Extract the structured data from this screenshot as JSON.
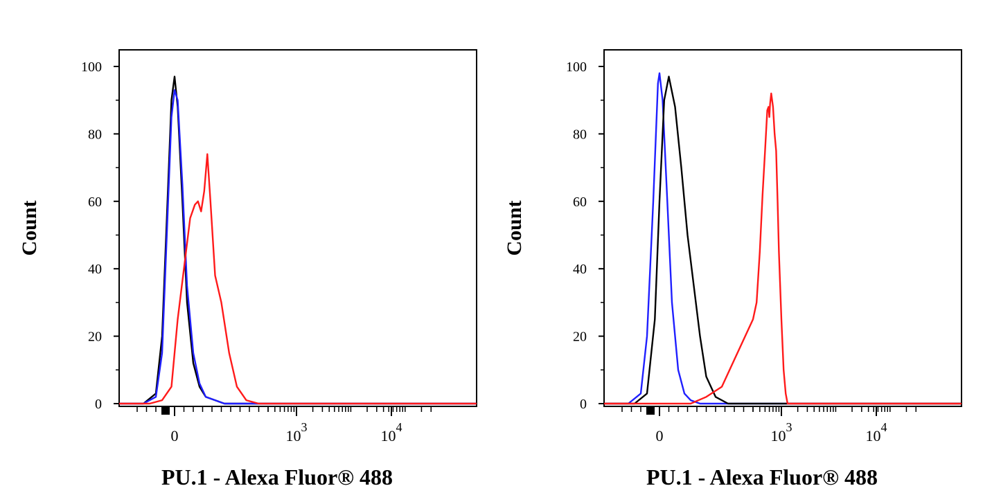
{
  "colors": {
    "black_series": "#000000",
    "blue_series": "#1f1fff",
    "red_series": "#ff1a1a",
    "axis": "#000000"
  },
  "chart_data": [
    {
      "type": "line",
      "xlabel": "PU.1 - Alexa Fluor® 488",
      "ylabel": "Count",
      "xscale": "biexponential",
      "ylim": [
        0,
        100
      ],
      "yticks": [
        0,
        20,
        40,
        60,
        80,
        100
      ],
      "xtick_labels": [
        {
          "value": 0,
          "base": "0",
          "exp": ""
        },
        {
          "value": 1000,
          "base": "10",
          "exp": "3"
        },
        {
          "value": 10000,
          "base": "10",
          "exp": "4"
        }
      ],
      "grid": false,
      "legend": "none",
      "series": [
        {
          "color": "black",
          "x": [
            -100,
            -60,
            -40,
            -25,
            -10,
            0,
            10,
            25,
            40,
            60,
            80,
            100,
            130,
            160,
            200
          ],
          "y": [
            0,
            3,
            20,
            55,
            90,
            97,
            88,
            60,
            30,
            12,
            5,
            2,
            1,
            0,
            0
          ]
        },
        {
          "color": "blue",
          "x": [
            -100,
            -60,
            -40,
            -25,
            -10,
            0,
            10,
            25,
            40,
            60,
            80,
            100,
            130,
            160,
            200
          ],
          "y": [
            0,
            2,
            15,
            50,
            85,
            93,
            90,
            65,
            35,
            15,
            6,
            2,
            1,
            0,
            0
          ]
        },
        {
          "color": "red",
          "x": [
            -80,
            -40,
            -10,
            10,
            30,
            50,
            65,
            75,
            85,
            95,
            105,
            115,
            130,
            150,
            175,
            200,
            230,
            270
          ],
          "y": [
            0,
            1,
            5,
            25,
            40,
            55,
            59,
            60,
            57,
            63,
            74,
            60,
            38,
            30,
            15,
            5,
            1,
            0
          ]
        }
      ]
    },
    {
      "type": "line",
      "xlabel": "PU.1 - Alexa Fluor® 488",
      "ylabel": "Count",
      "xscale": "biexponential",
      "ylim": [
        0,
        100
      ],
      "yticks": [
        0,
        20,
        40,
        60,
        80,
        100
      ],
      "xtick_labels": [
        {
          "value": 0,
          "base": "0",
          "exp": ""
        },
        {
          "value": 1000,
          "base": "10",
          "exp": "3"
        },
        {
          "value": 10000,
          "base": "10",
          "exp": "4"
        }
      ],
      "grid": false,
      "legend": "none",
      "series": [
        {
          "color": "blue",
          "x": [
            -100,
            -60,
            -40,
            -20,
            -5,
            0,
            10,
            25,
            40,
            60,
            80,
            100,
            130
          ],
          "y": [
            0,
            3,
            20,
            60,
            95,
            98,
            90,
            60,
            30,
            10,
            3,
            1,
            0
          ]
        },
        {
          "color": "black",
          "x": [
            -80,
            -40,
            -15,
            0,
            15,
            30,
            50,
            70,
            90,
            110,
            130,
            150,
            180,
            220
          ],
          "y": [
            0,
            3,
            25,
            60,
            90,
            97,
            88,
            70,
            50,
            35,
            20,
            8,
            2,
            0
          ]
        },
        {
          "color": "red",
          "x": [
            100,
            150,
            200,
            250,
            300,
            350,
            400,
            450,
            500,
            550,
            580,
            600,
            620,
            650,
            700,
            750,
            800,
            850,
            900,
            1000,
            1100,
            1200,
            1300
          ],
          "y": [
            0,
            2,
            5,
            15,
            25,
            30,
            45,
            62,
            75,
            87,
            88,
            85,
            89,
            92,
            88,
            80,
            75,
            60,
            45,
            25,
            10,
            3,
            0
          ]
        }
      ]
    }
  ]
}
